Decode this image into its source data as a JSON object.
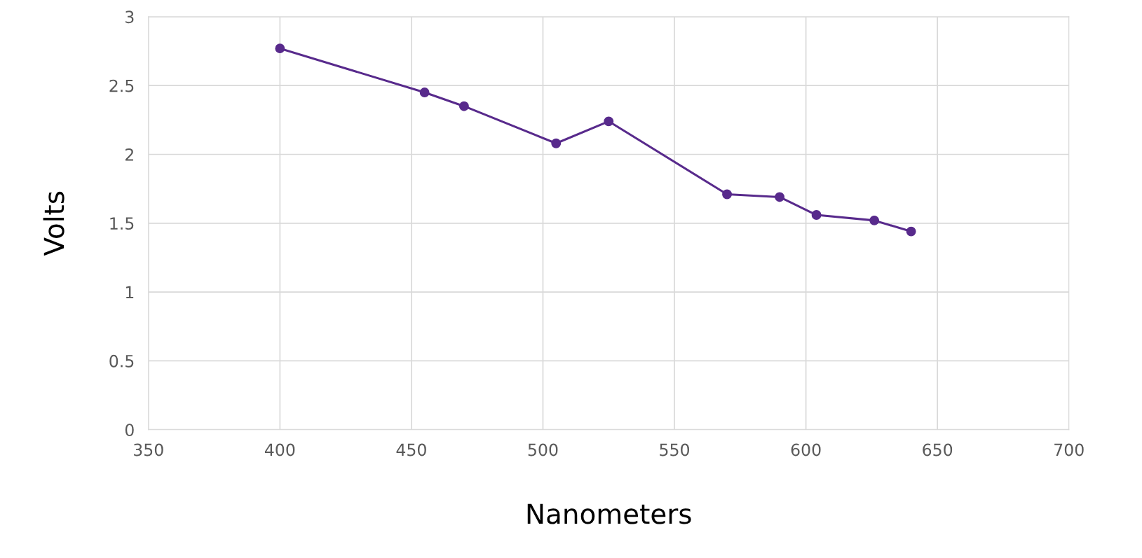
{
  "chart_data": {
    "type": "line",
    "xlabel": "Nanometers",
    "ylabel": "Volts",
    "x": [
      400,
      455,
      470,
      505,
      525,
      570,
      590,
      604,
      626,
      640
    ],
    "series": [
      {
        "color": "#582a8c",
        "values": [
          2.77,
          2.45,
          2.35,
          2.08,
          2.24,
          1.71,
          1.69,
          1.56,
          1.52,
          1.44
        ]
      }
    ],
    "xlim": [
      350,
      700
    ],
    "xticks": [
      350,
      400,
      450,
      500,
      550,
      600,
      650,
      700
    ],
    "ylim": [
      0,
      3
    ],
    "yticks": [
      0,
      {
        "value": 0.5,
        "label": "0.5"
      },
      1,
      {
        "value": 1.5,
        "label": "1.5"
      },
      2,
      {
        "value": 2.5,
        "label": "2.5"
      },
      3
    ],
    "grid": true,
    "marker": "circle",
    "line_style": "solid"
  }
}
